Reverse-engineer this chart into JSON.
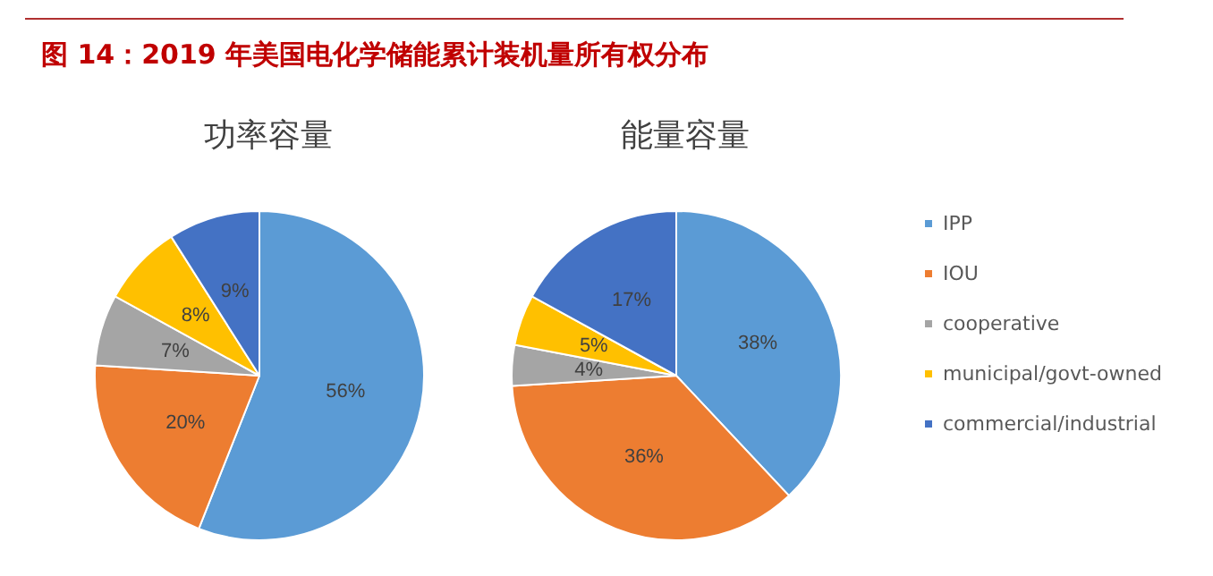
{
  "chart_data": [
    {
      "type": "pie",
      "title": "图 14：2019 年美国电化学储能累计装机量所有权分布",
      "subtitle": "功率容量",
      "categories": [
        null,
        null,
        null,
        null,
        null
      ],
      "values": [
        56,
        20,
        7,
        8,
        9
      ],
      "value_labels": [
        "56%",
        "20%",
        "7%",
        "8%",
        "9%"
      ],
      "colors": [
        "#5b9bd5",
        "#ed7d31",
        "#a5a5a5",
        "#ffc000",
        "#4472c4"
      ],
      "legend": false
    },
    {
      "type": "pie",
      "subtitle": "能量容量",
      "categories": [
        "IPP",
        "IOU",
        "cooperative",
        "municipal/govt-owned",
        "commercial/industrial"
      ],
      "values": [
        38,
        36,
        4,
        5,
        17
      ],
      "value_labels": [
        "38%",
        "36%",
        "4%",
        "5%",
        "17%"
      ],
      "colors": [
        "#5b9bd5",
        "#ed7d31",
        "#a5a5a5",
        "#ffc000",
        "#4472c4"
      ],
      "legend": "right"
    }
  ]
}
